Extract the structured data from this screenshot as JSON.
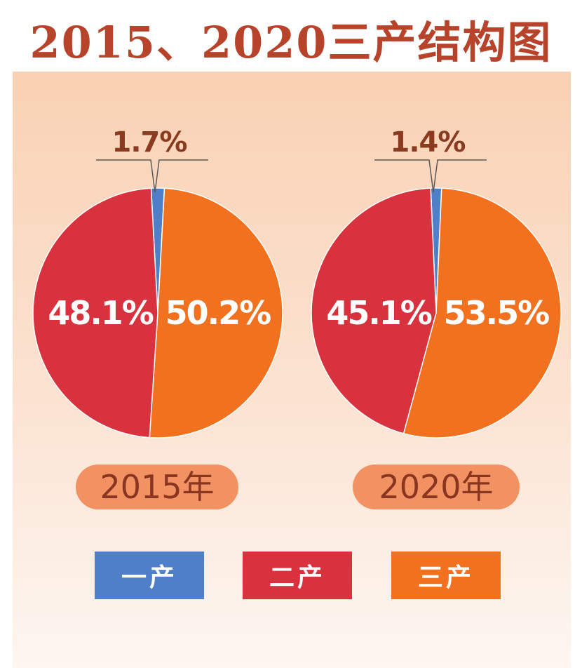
{
  "title": "2015、2020三产结构图",
  "colors": {
    "primary": "#4f7fc9",
    "secondary": "#d9323f",
    "tertiary": "#f2711f",
    "label_pill": "#f29263",
    "label_text": "#8a3520",
    "title": "#b8432b",
    "callout_text": "#8a3a1f"
  },
  "chart_data": [
    {
      "type": "pie",
      "label": "2015年",
      "slices": [
        {
          "category": "一产",
          "value": 1.7,
          "label": "1.7%"
        },
        {
          "category": "三产",
          "value": 50.2,
          "label": "50.2%"
        },
        {
          "category": "二产",
          "value": 48.1,
          "label": "48.1%"
        }
      ]
    },
    {
      "type": "pie",
      "label": "2020年",
      "slices": [
        {
          "category": "一产",
          "value": 1.4,
          "label": "1.4%"
        },
        {
          "category": "三产",
          "value": 53.5,
          "label": "53.5%"
        },
        {
          "category": "二产",
          "value": 45.1,
          "label": "45.1%"
        }
      ]
    }
  ],
  "legend": [
    {
      "label": "一产",
      "color": "#4f7fc9"
    },
    {
      "label": "二产",
      "color": "#d9323f"
    },
    {
      "label": "三产",
      "color": "#f2711f"
    }
  ]
}
